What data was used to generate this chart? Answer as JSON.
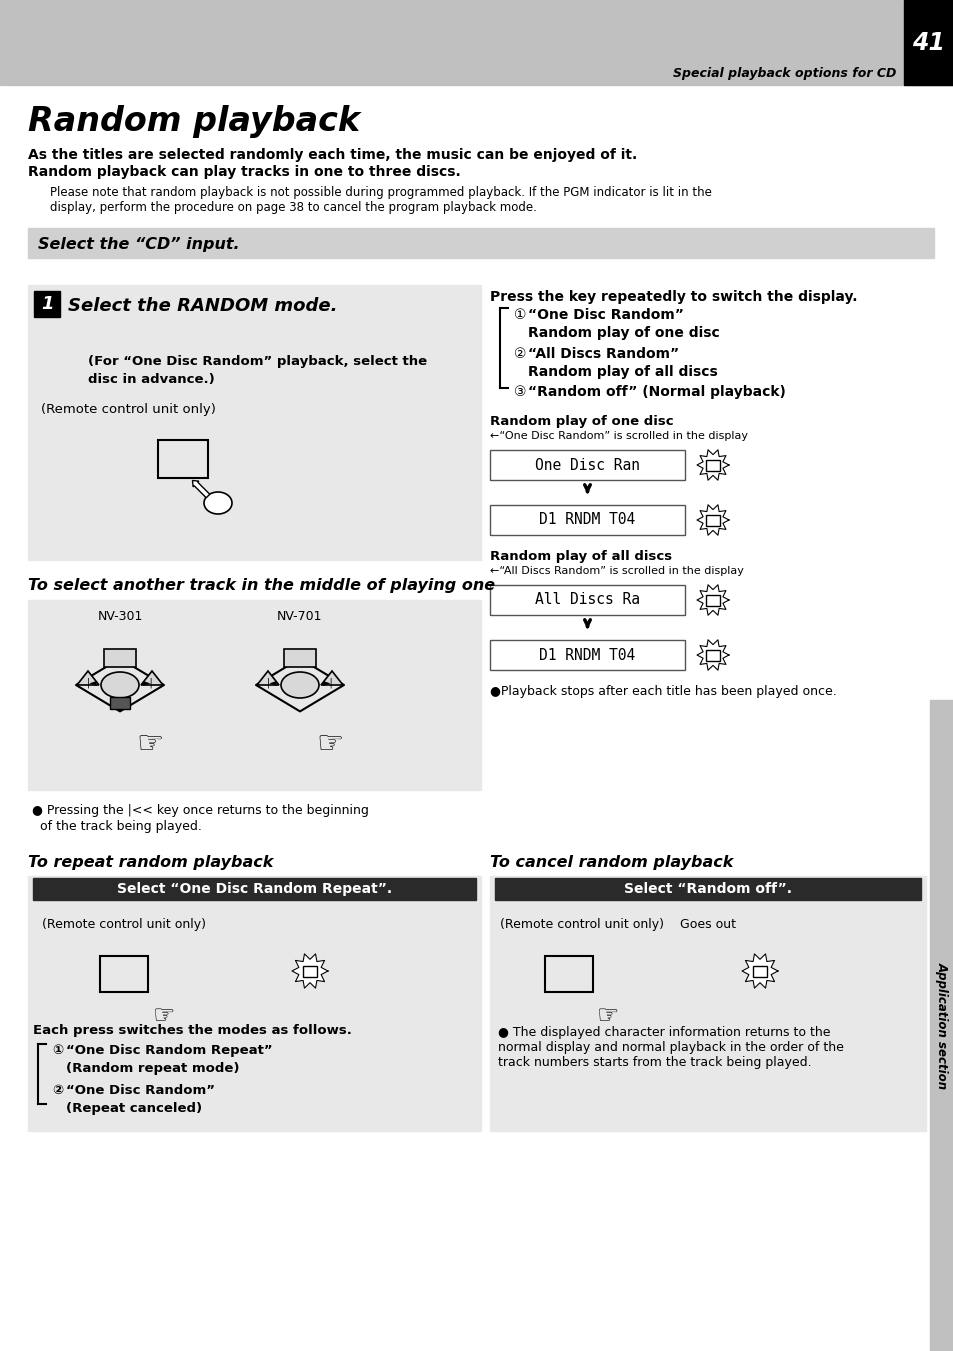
{
  "page_bg": "#ffffff",
  "header_bg": "#c0c0c0",
  "header_text": "Special playback options for CD",
  "page_number": "41",
  "title": "Random playback",
  "intro_line1": "As the titles are selected randomly each time, the music can be enjoyed of it.",
  "intro_line2": "Random playback can play tracks in one to three discs.",
  "note_text": "Please note that random playback is not possible during programmed playback. If the PGM indicator is lit in the\ndisplay, perform the procedure on page 38 to cancel the program playback mode.",
  "step_banner_text": "Select the “CD” input.",
  "step_banner_bg": "#d0d0d0",
  "step1_box_bg": "#e8e8e8",
  "step1_title": "Select the RANDOM mode.",
  "step1_sub1": "(For “One Disc Random” playback, select the",
  "step1_sub2": "disc in advance.)",
  "step1_sub3": "(Remote control unit only)",
  "press_key_title": "Press the key repeatedly to switch the display.",
  "option1_label": "“One Disc Random”",
  "option1_sub": "Random play of one disc",
  "option2_label": "“All Discs Random”",
  "option2_sub": "Random play of all discs",
  "option3_label": "“Random off” (Normal playback)",
  "rnd1_title": "Random play of one disc",
  "rnd1_sub": "←“One Disc Random” is scrolled in the display",
  "lcd1_top": "One Disc Ran",
  "lcd1_bot": "D1 RNDM T04",
  "rnd2_title": "Random play of all discs",
  "rnd2_sub": "←“All Discs Random” is scrolled in the display",
  "lcd2_top": "All Discs Ra",
  "lcd2_bot": "D1 RNDM T04",
  "playback_note": "●Playback stops after each title has been played once.",
  "track_section_title": "To select another track in the middle of playing one",
  "nv301_label": "NV-301",
  "nv701_label": "NV-701",
  "press_note_a": "● Pressing the |<< key once returns to the beginning",
  "press_note_b": "  of the track being played.",
  "repeat_title": "To repeat random playback",
  "repeat_banner": "Select “One Disc Random Repeat”.",
  "repeat_banner_bg": "#2a2a2a",
  "repeat_banner_fg": "#ffffff",
  "repeat_sub": "(Remote control unit only)",
  "repeat_modes_title": "Each press switches the modes as follows.",
  "repeat_mode1a": "“One Disc Random Repeat”",
  "repeat_mode1b": "(Random repeat mode)",
  "repeat_mode2a": "“One Disc Random”",
  "repeat_mode2b": "(Repeat canceled)",
  "cancel_title": "To cancel random playback",
  "cancel_banner": "Select “Random off”.",
  "cancel_banner_bg": "#2a2a2a",
  "cancel_banner_fg": "#ffffff",
  "cancel_sub": "(Remote control unit only)",
  "goes_out": "Goes out",
  "cancel_note": "● The displayed character information returns to the\nnormal display and normal playback in the order of the\ntrack numbers starts from the track being played.",
  "sidebar_text": "Application section",
  "sidebar_bg": "#c0c0c0"
}
